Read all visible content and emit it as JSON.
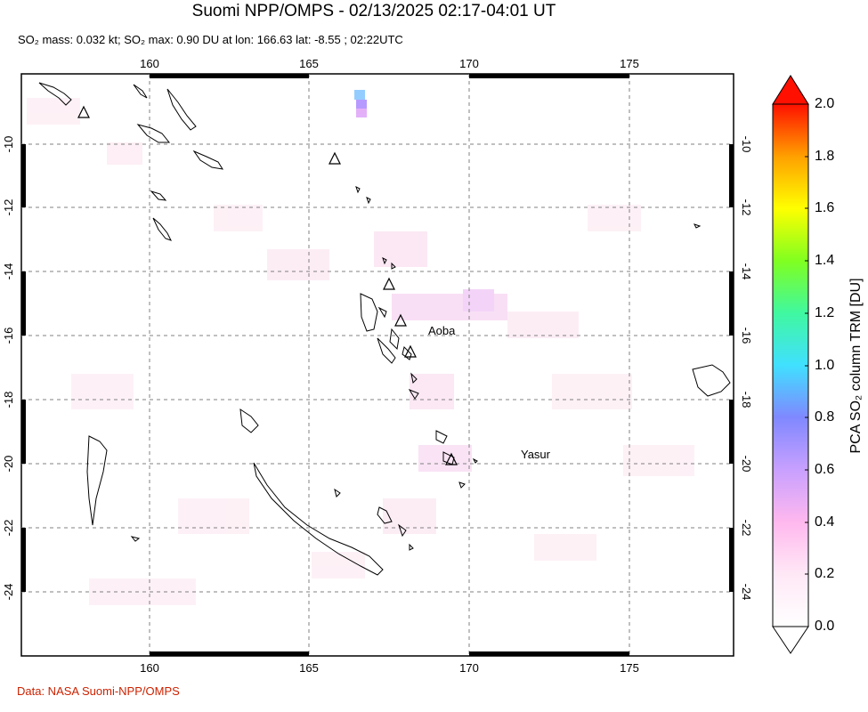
{
  "title": "Suomi NPP/OMPS - 02/13/2025 02:17-04:01 UT",
  "subtitle": "SO₂ mass: 0.032 kt; SO₂ max: 0.90 DU at lon: 166.63 lat: -8.55 ; 02:22UTC",
  "credit": "Data: NASA Suomi-NPP/OMPS",
  "map": {
    "lon_range": [
      156,
      178
    ],
    "lat_range": [
      -25.2,
      -8
    ],
    "lon_ticks": [
      "160",
      "165",
      "170",
      "175"
    ],
    "lat_ticks": [
      "-10",
      "-12",
      "-14",
      "-16",
      "-18",
      "-20",
      "-22",
      "-24"
    ],
    "grid": "dashed",
    "volcano_labels": [
      "Aoba",
      "Yasur"
    ]
  },
  "colorbar": {
    "title": "PCA SO₂ column TRM [DU]",
    "ticks": [
      "0.0",
      "0.2",
      "0.4",
      "0.6",
      "0.8",
      "1.0",
      "1.2",
      "1.4",
      "1.6",
      "1.8",
      "2.0"
    ],
    "range": [
      0,
      2
    ],
    "colors": [
      "#ffffff",
      "#ffb0f0",
      "#c8a0ff",
      "#8080ff",
      "#40e0ff",
      "#40ff80",
      "#a0ff20",
      "#ffff00",
      "#ffa000",
      "#ff3000",
      "#ff0000"
    ]
  }
}
